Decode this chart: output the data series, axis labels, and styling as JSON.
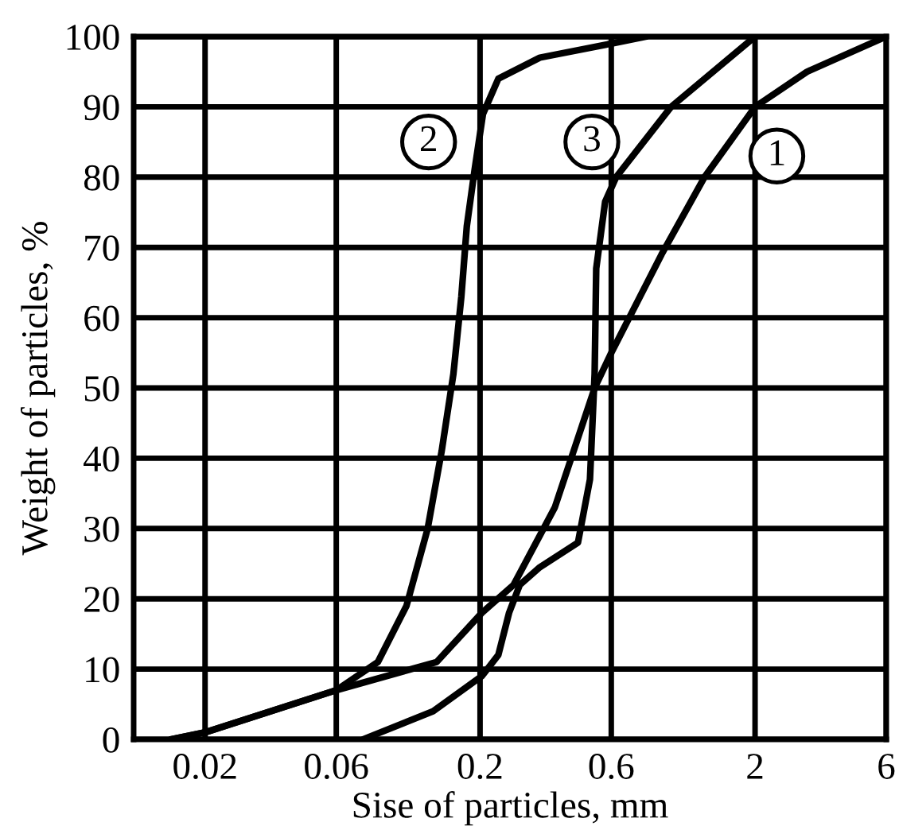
{
  "chart_data": {
    "type": "line",
    "xlabel": "Sise of particles, mm",
    "ylabel": "Weight of particles, %",
    "x": [
      0.015,
      0.02,
      0.06,
      0.139,
      0.203,
      0.265,
      0.374,
      0.522,
      0.6,
      0.914,
      1.31,
      2,
      3.09,
      6
    ],
    "series": [
      {
        "color": "#000000",
        "values": [
          0,
          1,
          7,
          11,
          18,
          22,
          33,
          50,
          55,
          69,
          80,
          90,
          95,
          100
        ]
      },
      {
        "color": "#000000",
        "x": [
          0.015,
          0.02,
          0.06,
          0.085,
          0.108,
          0.129,
          0.145,
          0.16,
          0.171,
          0.179,
          0.191,
          0.205,
          0.233,
          0.33,
          0.6,
          0.805
        ],
        "values": [
          0,
          1,
          7,
          11,
          19,
          30,
          41,
          52,
          63,
          73,
          81,
          89,
          94,
          97,
          99,
          100
        ]
      },
      {
        "color": "#000000",
        "x": [
          0.075,
          0.135,
          0.203,
          0.233,
          0.255,
          0.279,
          0.33,
          0.454,
          0.502,
          0.522,
          0.529,
          0.57,
          0.625,
          0.99,
          2
        ],
        "values": [
          0,
          4,
          9,
          12,
          18,
          22,
          24.5,
          28,
          37,
          52,
          67,
          76.5,
          80,
          90,
          100
        ]
      }
    ],
    "log": "x",
    "xlim": [
      0.011,
      6
    ],
    "xticks": [
      0.02,
      0.06,
      0.2,
      0.6,
      2,
      6
    ],
    "ylim": [
      0,
      100
    ],
    "yticks": [
      0,
      10,
      20,
      30,
      40,
      50,
      60,
      70,
      80,
      90,
      100
    ],
    "grid": true,
    "line_style": "solid",
    "marker": "none",
    "annotations": [
      {
        "text": "1",
        "x": 2.4,
        "y": 83
      },
      {
        "text": "2",
        "x": 0.13,
        "y": 85
      },
      {
        "text": "3",
        "x": 0.51,
        "y": 85
      }
    ]
  }
}
